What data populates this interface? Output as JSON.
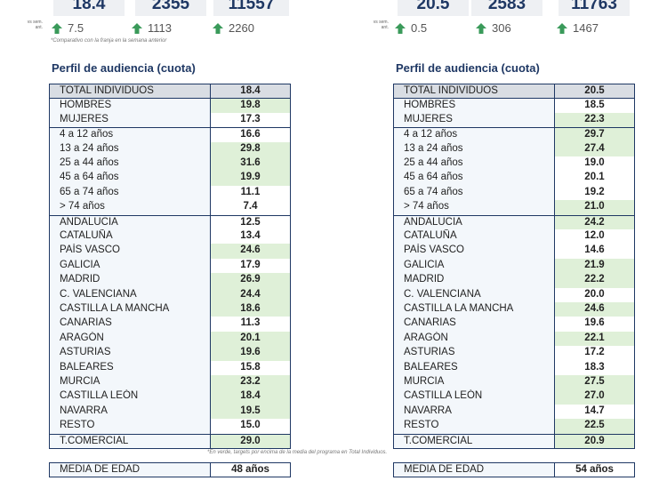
{
  "panels": [
    {
      "top_values": [
        "18.4",
        "2355",
        "11557"
      ],
      "vs_label": "vs sem. ant.",
      "changes": [
        "7.5",
        "1113",
        "2260"
      ],
      "note": "*Comparativo con la franja en la semana anterior",
      "profile_title": "Perfil de audiencia (cuota)",
      "groups": [
        [
          {
            "label": "TOTAL INDIVIDUOS",
            "value": "18.4",
            "highlight": false
          }
        ],
        [
          {
            "label": "HOMBRES",
            "value": "19.8",
            "highlight": true
          },
          {
            "label": "MUJERES",
            "value": "17.3",
            "highlight": false
          }
        ],
        [
          {
            "label": "4 a 12 años",
            "value": "16.6",
            "highlight": false
          },
          {
            "label": "13 a 24 años",
            "value": "29.8",
            "highlight": true
          },
          {
            "label": "25 a 44 años",
            "value": "31.6",
            "highlight": true
          },
          {
            "label": "45 a 64 años",
            "value": "19.9",
            "highlight": true
          },
          {
            "label": "65 a 74 años",
            "value": "11.1",
            "highlight": false
          },
          {
            "label": "> 74 años",
            "value": "7.4",
            "highlight": false
          }
        ],
        [
          {
            "label": "ANDALUCIA",
            "value": "12.5",
            "highlight": false
          },
          {
            "label": "CATALUÑA",
            "value": "13.4",
            "highlight": false
          },
          {
            "label": "PAÍS VASCO",
            "value": "24.6",
            "highlight": true
          },
          {
            "label": "GALICIA",
            "value": "17.9",
            "highlight": false
          },
          {
            "label": "MADRID",
            "value": "26.9",
            "highlight": true
          },
          {
            "label": "C. VALENCIANA",
            "value": "24.4",
            "highlight": true
          },
          {
            "label": "CASTILLA LA MANCHA",
            "value": "18.6",
            "highlight": true
          },
          {
            "label": "CANARIAS",
            "value": "11.3",
            "highlight": false
          },
          {
            "label": "ARAGÓN",
            "value": "20.1",
            "highlight": true
          },
          {
            "label": "ASTURIAS",
            "value": "19.6",
            "highlight": true
          },
          {
            "label": "BALEARES",
            "value": "15.8",
            "highlight": false
          },
          {
            "label": "MURCIA",
            "value": "23.2",
            "highlight": true
          },
          {
            "label": "CASTILLA LEÓN",
            "value": "18.4",
            "highlight": true
          },
          {
            "label": "NAVARRA",
            "value": "19.5",
            "highlight": true
          },
          {
            "label": "RESTO",
            "value": "15.0",
            "highlight": false
          }
        ],
        [
          {
            "label": "T.COMERCIAL",
            "value": "29.0",
            "highlight": true
          }
        ]
      ],
      "age_label": "MEDIA DE EDAD",
      "age_value": "48 años"
    },
    {
      "top_values": [
        "20.5",
        "2583",
        "11763"
      ],
      "vs_label": "vs sem. ant.",
      "changes": [
        "0.5",
        "306",
        "1467"
      ],
      "profile_title": "Perfil de audiencia (cuota)",
      "groups": [
        [
          {
            "label": "TOTAL INDIVIDUOS",
            "value": "20.5",
            "highlight": false
          }
        ],
        [
          {
            "label": "HOMBRES",
            "value": "18.5",
            "highlight": false
          },
          {
            "label": "MUJERES",
            "value": "22.3",
            "highlight": true
          }
        ],
        [
          {
            "label": "4 a 12 años",
            "value": "29.7",
            "highlight": true
          },
          {
            "label": "13 a 24 años",
            "value": "27.4",
            "highlight": true
          },
          {
            "label": "25 a 44 años",
            "value": "19.0",
            "highlight": false
          },
          {
            "label": "45 a 64 años",
            "value": "20.1",
            "highlight": false
          },
          {
            "label": "65 a 74 años",
            "value": "19.2",
            "highlight": false
          },
          {
            "label": "> 74 años",
            "value": "21.0",
            "highlight": true
          }
        ],
        [
          {
            "label": "ANDALUCIA",
            "value": "24.2",
            "highlight": true
          },
          {
            "label": "CATALUÑA",
            "value": "12.0",
            "highlight": false
          },
          {
            "label": "PAÍS VASCO",
            "value": "14.6",
            "highlight": false
          },
          {
            "label": "GALICIA",
            "value": "21.9",
            "highlight": true
          },
          {
            "label": "MADRID",
            "value": "22.2",
            "highlight": true
          },
          {
            "label": "C. VALENCIANA",
            "value": "20.0",
            "highlight": false
          },
          {
            "label": "CASTILLA LA MANCHA",
            "value": "24.6",
            "highlight": true
          },
          {
            "label": "CANARIAS",
            "value": "19.6",
            "highlight": false
          },
          {
            "label": "ARAGÓN",
            "value": "22.1",
            "highlight": true
          },
          {
            "label": "ASTURIAS",
            "value": "17.2",
            "highlight": false
          },
          {
            "label": "BALEARES",
            "value": "18.3",
            "highlight": false
          },
          {
            "label": "MURCIA",
            "value": "27.5",
            "highlight": true
          },
          {
            "label": "CASTILLA LEÓN",
            "value": "27.0",
            "highlight": true
          },
          {
            "label": "NAVARRA",
            "value": "14.7",
            "highlight": false
          },
          {
            "label": "RESTO",
            "value": "22.5",
            "highlight": true
          }
        ],
        [
          {
            "label": "T.COMERCIAL",
            "value": "20.9",
            "highlight": true
          }
        ]
      ],
      "age_label": "MEDIA DE EDAD",
      "age_value": "54 años"
    }
  ],
  "footnote": "*En verde, targets por encima de la media del programa en Total Individuos."
}
